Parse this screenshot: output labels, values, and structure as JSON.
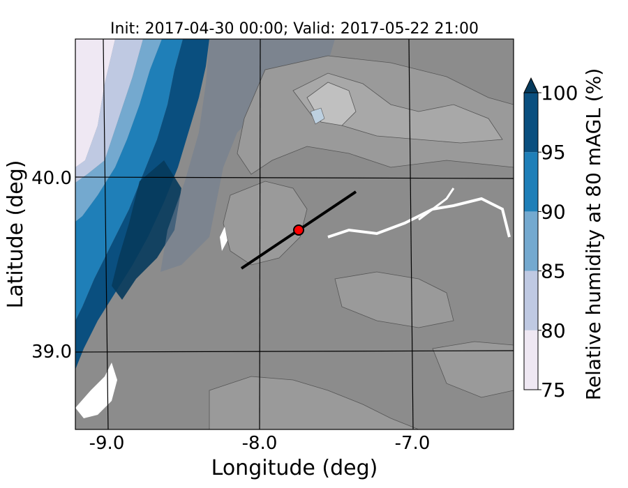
{
  "title": "Init: 2017-04-30 00:00; Valid: 2017-05-22 21:00",
  "xaxis": {
    "label": "Longitude (deg)",
    "ticks": [
      "-9.0",
      "-8.0",
      "-7.0"
    ]
  },
  "yaxis": {
    "label": "Latitude (deg)",
    "ticks": [
      "40.0",
      "39.0"
    ]
  },
  "colorbar": {
    "label": "Relative humidity at 80 mAGL (%)",
    "ticks": [
      "75",
      "80",
      "85",
      "90",
      "95",
      "100"
    ],
    "extend": "max",
    "levels": [
      {
        "from": 75,
        "to": 80,
        "color": "#efe8f3"
      },
      {
        "from": 80,
        "to": 85,
        "color": "#bfc9e2"
      },
      {
        "from": 85,
        "to": 90,
        "color": "#74a9cf"
      },
      {
        "from": 90,
        "to": 95,
        "color": "#1f7fb8"
      },
      {
        "from": 95,
        "to": 100,
        "color": "#0a4f7f"
      }
    ],
    "over_color": "#063a5c"
  },
  "map": {
    "terrain_mask_color": "#8c8c8c",
    "transect_color": "#000000",
    "marker_color": "#ff0000"
  }
}
